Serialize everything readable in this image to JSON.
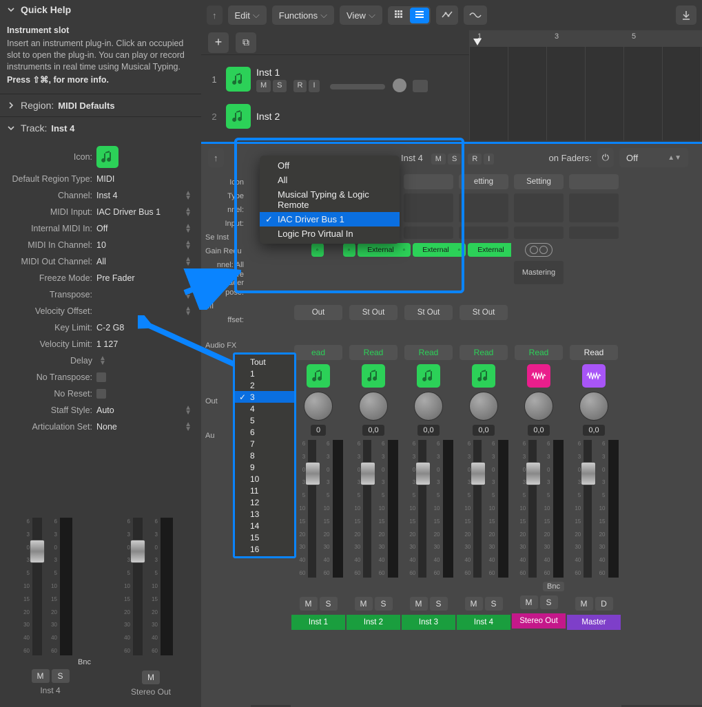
{
  "quickHelp": {
    "title": "Quick Help",
    "subtitle": "Instrument slot",
    "body": "Insert an instrument plug-in. Click an occupied slot to open the plug-in. You can play or record instruments in real time using Musical Typing.",
    "more": "Press ⇧⌘, for more info."
  },
  "region": {
    "label": "Region:",
    "value": "MIDI Defaults"
  },
  "track": {
    "label": "Track:",
    "value": "Inst 4"
  },
  "inspector": {
    "icon": "Icon:",
    "defaultRegionType": {
      "l": "Default Region Type:",
      "v": "MIDI"
    },
    "channel": {
      "l": "Channel:",
      "v": "Inst 4"
    },
    "midiInput": {
      "l": "MIDI Input:",
      "v": "IAC Driver Bus 1"
    },
    "internalMidiIn": {
      "l": "Internal MIDI In:",
      "v": "Off"
    },
    "midiInChannel": {
      "l": "MIDI In Channel:",
      "v": "10"
    },
    "midiOutChannel": {
      "l": "MIDI Out Channel:",
      "v": "All"
    },
    "freezeMode": {
      "l": "Freeze Mode:",
      "v": "Pre Fader"
    },
    "transpose": {
      "l": "Transpose:",
      "v": ""
    },
    "velocityOffset": {
      "l": "Velocity Offset:",
      "v": ""
    },
    "keyLimit": {
      "l": "Key Limit:",
      "v": "C-2  G8"
    },
    "velocityLimit": {
      "l": "Velocity Limit:",
      "v": "1   127"
    },
    "delay": {
      "l": "Delay",
      "v": ""
    },
    "noTranspose": {
      "l": "No Transpose:",
      "v": ""
    },
    "noReset": {
      "l": "No Reset:",
      "v": ""
    },
    "staffStyle": {
      "l": "Staff Style:",
      "v": "Auto"
    },
    "articulationSet": {
      "l": "Articulation Set:",
      "v": "None"
    }
  },
  "toolbar": {
    "edit": "Edit",
    "functions": "Functions",
    "view": "View"
  },
  "rulerNums": [
    "1",
    "3",
    "5"
  ],
  "tracks": [
    {
      "num": "1",
      "name": "Inst 1"
    },
    {
      "num": "2",
      "name": "Inst 2"
    }
  ],
  "msri": [
    "M",
    "S",
    "R",
    "I"
  ],
  "mixerBtns": {
    "inst4": "Inst 4",
    "onFaders": "on Faders:",
    "off": "Off"
  },
  "leftCol": {
    "icon": "Icon",
    "type": "Type",
    "nnel1": "nnel:",
    "input": "Input:",
    "seInst": "Se    Inst",
    "gainRedu": "Gain Redu",
    "nnel2": "nnel:",
    "all": "All",
    "mode": "Mode:",
    "pre": "Pre Fader",
    "pose": "pose:",
    "offset": "ffset:",
    "mi": "MI",
    "audiofx": "Audio FX",
    "out": "Out",
    "au": "Au"
  },
  "midiMenu": [
    "Off",
    "All",
    "Musical Typing & Logic Remote",
    "IAC Driver Bus 1",
    "Logic Pro Virtual In"
  ],
  "channelMenu": [
    "Tout",
    "1",
    "2",
    "3",
    "4",
    "5",
    "6",
    "7",
    "8",
    "9",
    "10",
    "11",
    "12",
    "13",
    "14",
    "15",
    "16"
  ],
  "strips": [
    {
      "setting": "",
      "ext": "",
      "out": "Out",
      "read": "ead",
      "readClass": "read-green",
      "icon": "green",
      "pan": "0",
      "label": "Inst 1",
      "lblClass": "lbl-green"
    },
    {
      "setting": "",
      "ext": "External",
      "out": "St Out",
      "read": "Read",
      "readClass": "read-green",
      "icon": "green",
      "pan": "0,0",
      "label": "Inst 2",
      "lblClass": "lbl-green"
    },
    {
      "setting": "",
      "ext": "External",
      "out": "St Out",
      "read": "Read",
      "readClass": "read-green",
      "icon": "green",
      "pan": "0,0",
      "label": "Inst 3",
      "lblClass": "lbl-green"
    },
    {
      "setting": "etting",
      "ext": "External",
      "out": "St Out",
      "read": "Read",
      "readClass": "read-green",
      "icon": "green",
      "pan": "0,0",
      "label": "Inst 4",
      "lblClass": "lbl-green"
    },
    {
      "setting": "Setting",
      "ext": "stereo",
      "out": "",
      "read": "Read",
      "readClass": "read-green",
      "icon": "pink",
      "pan": "0,0",
      "label": "Stereo Out",
      "lblClass": "lbl-pink",
      "mastering": "Mastering",
      "bnc": "Bnc"
    },
    {
      "setting": "",
      "ext": "",
      "out": "",
      "read": "Read",
      "readClass": "read-white",
      "icon": "purple",
      "pan": "0,0",
      "label": "Master",
      "lblClass": "lbl-purple",
      "md": true
    }
  ],
  "scaleNums": [
    "6",
    "3",
    "0",
    "3",
    "5",
    "10",
    "15",
    "20",
    "30",
    "40",
    "60"
  ],
  "ms": {
    "m": "M",
    "s": "S",
    "d": "D"
  },
  "bottomStrips": [
    {
      "bnc": "Bnc",
      "name": "Inst 4"
    },
    {
      "bnc": "",
      "name": "Stereo Out"
    }
  ],
  "colors": {
    "blue": "#0a84ff",
    "green": "#2cd158"
  }
}
